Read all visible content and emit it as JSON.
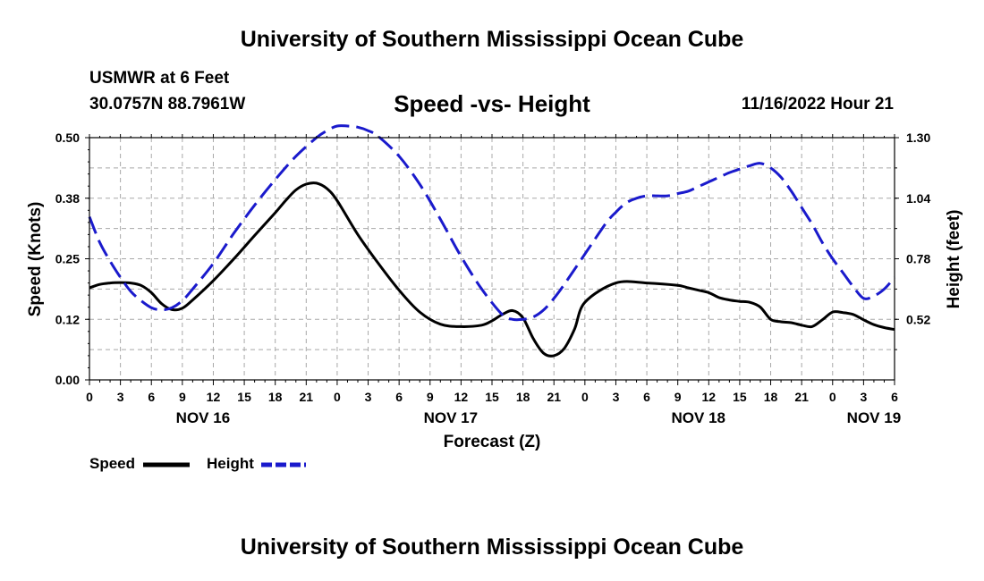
{
  "header": {
    "title": "University of Southern Mississippi Ocean Cube",
    "station_name": "USMWR at 6 Feet",
    "station_coords": "30.0757N  88.7961W",
    "run_time": "11/16/2022 Hour 21",
    "footer_title": "University of Southern Mississippi Ocean Cube"
  },
  "colors": {
    "speed": "#000000",
    "height": "#1a1acc",
    "grid": "#a8a8a8"
  },
  "chart_data": {
    "type": "line",
    "title": "Speed -vs- Height",
    "xlabel": "Forecast (Z)",
    "ylabel_left": "Speed (Knots)",
    "ylabel_right": "Height (feet)",
    "x_unit": "forecast hours from NOV 16 00Z",
    "xlim": [
      0,
      78
    ],
    "ylim_left": [
      0.0,
      0.5
    ],
    "ylim_right": [
      0.26,
      1.3
    ],
    "left_ticks": [
      "0.00",
      "0.12",
      "0.25",
      "0.38",
      "0.50"
    ],
    "right_ticks": [
      "0.52",
      "0.78",
      "1.04",
      "1.30"
    ],
    "right_tick_values": [
      0.52,
      0.78,
      1.04,
      1.3
    ],
    "x_tick_labels": [
      "0",
      "3",
      "6",
      "9",
      "12",
      "15",
      "18",
      "21",
      "0",
      "3",
      "6",
      "9",
      "12",
      "15",
      "18",
      "21",
      "0",
      "3",
      "6",
      "9",
      "12",
      "15",
      "18",
      "21",
      "0",
      "3",
      "6"
    ],
    "day_labels": [
      {
        "label": "NOV 16",
        "hour": 11
      },
      {
        "label": "NOV 17",
        "hour": 35
      },
      {
        "label": "NOV 18",
        "hour": 59
      },
      {
        "label": "NOV 19",
        "hour": 76
      }
    ],
    "grid": true,
    "legend": [
      {
        "name": "Speed",
        "style": "solid"
      },
      {
        "name": "Height",
        "style": "dashed"
      }
    ],
    "series": [
      {
        "name": "Speed",
        "axis": "left",
        "style": "solid",
        "x": [
          0,
          1,
          2,
          3,
          4,
          5,
          6,
          7,
          8,
          9,
          10,
          12,
          14,
          16,
          18,
          19,
          20,
          21,
          22,
          23,
          24,
          26,
          28,
          30,
          32,
          34,
          36,
          38,
          39,
          40,
          41,
          42,
          43,
          44,
          45,
          46,
          47,
          48,
          51,
          54,
          57,
          58,
          59,
          60,
          61,
          62,
          63,
          64,
          65,
          66,
          67,
          68,
          69,
          70,
          71,
          72,
          73,
          74,
          75,
          76,
          77,
          78
        ],
        "values": [
          0.19,
          0.197,
          0.2,
          0.201,
          0.2,
          0.195,
          0.18,
          0.157,
          0.145,
          0.148,
          0.165,
          0.205,
          0.25,
          0.298,
          0.345,
          0.37,
          0.392,
          0.404,
          0.406,
          0.395,
          0.37,
          0.3,
          0.24,
          0.185,
          0.14,
          0.115,
          0.11,
          0.113,
          0.122,
          0.135,
          0.143,
          0.128,
          0.085,
          0.055,
          0.05,
          0.065,
          0.105,
          0.16,
          0.2,
          0.2,
          0.195,
          0.19,
          0.185,
          0.18,
          0.17,
          0.165,
          0.162,
          0.16,
          0.15,
          0.125,
          0.12,
          0.118,
          0.113,
          0.11,
          0.124,
          0.14,
          0.139,
          0.135,
          0.124,
          0.114,
          0.108,
          0.104
        ]
      },
      {
        "name": "Height",
        "axis": "right",
        "style": "dashed",
        "x": [
          0,
          1,
          2,
          3,
          4,
          5,
          6,
          7,
          8,
          9,
          10,
          12,
          14,
          16,
          18,
          20,
          22,
          23,
          24,
          25,
          26,
          27,
          28,
          30,
          32,
          34,
          36,
          38,
          40,
          41,
          42,
          43,
          44,
          45,
          46,
          48,
          50,
          51,
          52,
          53,
          54,
          55,
          56,
          57,
          58,
          59,
          60,
          61,
          62,
          63,
          64,
          65,
          66,
          67,
          68,
          69,
          70,
          71,
          72,
          73,
          74,
          75,
          76,
          77,
          78
        ],
        "values": [
          0.96,
          0.85,
          0.77,
          0.7,
          0.64,
          0.6,
          0.57,
          0.56,
          0.57,
          0.6,
          0.65,
          0.76,
          0.89,
          1.01,
          1.12,
          1.22,
          1.3,
          1.33,
          1.35,
          1.35,
          1.345,
          1.33,
          1.305,
          1.22,
          1.1,
          0.95,
          0.79,
          0.65,
          0.54,
          0.52,
          0.52,
          0.53,
          0.56,
          0.61,
          0.67,
          0.8,
          0.93,
          0.98,
          1.02,
          1.04,
          1.05,
          1.05,
          1.05,
          1.06,
          1.07,
          1.09,
          1.11,
          1.13,
          1.15,
          1.165,
          1.18,
          1.19,
          1.17,
          1.13,
          1.07,
          1.0,
          0.93,
          0.85,
          0.78,
          0.72,
          0.66,
          0.61,
          0.62,
          0.65,
          0.7
        ]
      }
    ]
  }
}
